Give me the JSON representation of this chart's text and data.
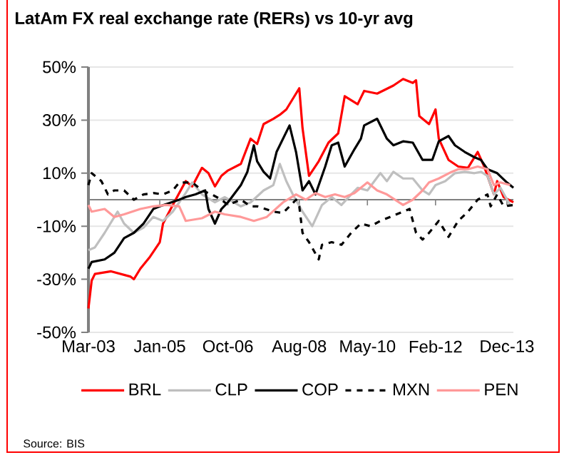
{
  "chart_data": {
    "type": "line",
    "title": "LatAm FX real exchange rate (RERs) vs 10-yr avg",
    "xlim": [
      "2003-03",
      "2014-02"
    ],
    "xticks": [
      {
        "value": "2003-03",
        "label": "Mar-03"
      },
      {
        "value": "2005-01",
        "label": "Jan-05"
      },
      {
        "value": "2006-10",
        "label": "Oct-06"
      },
      {
        "value": "2008-08",
        "label": "Aug-08"
      },
      {
        "value": "2010-05",
        "label": "May-10"
      },
      {
        "value": "2012-02",
        "label": "Feb-12"
      },
      {
        "value": "2013-12",
        "label": "Dec-13"
      }
    ],
    "ylim": [
      -50,
      50
    ],
    "yticks": [
      {
        "value": -50,
        "label": "-50%"
      },
      {
        "value": -30,
        "label": "-30%"
      },
      {
        "value": -10,
        "label": "-10%"
      },
      {
        "value": 10,
        "label": "10%"
      },
      {
        "value": 30,
        "label": "30%"
      },
      {
        "value": 50,
        "label": "50%"
      }
    ],
    "grid": "y",
    "legend": "bottom",
    "ref_lines": [
      {
        "axis": "y",
        "value": 0,
        "color": "#808080"
      }
    ],
    "annotations": [
      "Source: BIS"
    ],
    "series": [
      {
        "name": "BRL",
        "color": "#ff0000",
        "x": [
          "2003-03",
          "2003-04",
          "2003-05",
          "2003-10",
          "2004-04",
          "2004-05",
          "2004-07",
          "2004-10",
          "2005-01",
          "2005-02",
          "2005-05",
          "2005-09",
          "2005-11",
          "2006-02",
          "2006-04",
          "2006-06",
          "2006-08",
          "2006-10",
          "2007-02",
          "2007-05",
          "2007-07",
          "2007-09",
          "2007-12",
          "2008-02",
          "2008-04",
          "2008-08",
          "2008-09",
          "2008-11",
          "2009-02",
          "2009-05",
          "2009-08",
          "2009-10",
          "2010-02",
          "2010-04",
          "2010-08",
          "2011-01",
          "2011-04",
          "2011-07",
          "2011-08",
          "2011-09",
          "2011-12",
          "2012-02",
          "2012-03",
          "2012-06",
          "2012-09",
          "2012-12",
          "2013-03",
          "2013-05",
          "2013-08",
          "2013-09",
          "2013-11",
          "2014-02"
        ],
        "values": [
          -41,
          -30.5,
          -28,
          -27,
          -29,
          -30,
          -26,
          -21.5,
          -16,
          -9,
          -2,
          7,
          5,
          12,
          10,
          5,
          9,
          11,
          13.5,
          23,
          21,
          28.5,
          30.5,
          32,
          34,
          42,
          27,
          9,
          14.5,
          21.5,
          25,
          39,
          36,
          41,
          40,
          43,
          45.5,
          44,
          45,
          31.5,
          28.5,
          34,
          23,
          15,
          12.5,
          12,
          18,
          12.5,
          2,
          7,
          1,
          -1
        ]
      },
      {
        "name": "CLP",
        "color": "#bfbfbf",
        "x": [
          "2003-03",
          "2003-05",
          "2003-08",
          "2003-11",
          "2003-12",
          "2004-02",
          "2004-05",
          "2004-08",
          "2004-11",
          "2005-02",
          "2005-05",
          "2005-09",
          "2005-11",
          "2006-02",
          "2006-06",
          "2006-09",
          "2007-02",
          "2007-05",
          "2007-09",
          "2007-12",
          "2008-02",
          "2008-04",
          "2008-06",
          "2008-09",
          "2008-12",
          "2009-03",
          "2009-06",
          "2009-09",
          "2009-12",
          "2010-02",
          "2010-05",
          "2010-09",
          "2010-11",
          "2011-01",
          "2011-04",
          "2011-07",
          "2011-10",
          "2011-12",
          "2012-02",
          "2012-05",
          "2012-08",
          "2012-11",
          "2013-02",
          "2013-04",
          "2013-06",
          "2013-08",
          "2013-10",
          "2014-01"
        ],
        "values": [
          -19,
          -18,
          -12.5,
          -6.5,
          -4.5,
          -9,
          -12.5,
          -10.5,
          -6.5,
          -8,
          -4.5,
          2.5,
          6.5,
          2,
          -1,
          1,
          -2.5,
          -1,
          3.5,
          5.5,
          13.5,
          7,
          2,
          -4.5,
          -10,
          -2,
          1,
          -2,
          2,
          4.5,
          3.5,
          10,
          7,
          10.5,
          8,
          8,
          3.5,
          2,
          5.5,
          7,
          10,
          10.5,
          10,
          10.5,
          9,
          2,
          4.5,
          -2
        ]
      },
      {
        "name": "COP",
        "color": "#000000",
        "x": [
          "2003-03",
          "2003-04",
          "2003-08",
          "2003-11",
          "2004-02",
          "2004-05",
          "2004-08",
          "2004-11",
          "2005-01",
          "2005-07",
          "2005-09",
          "2005-12",
          "2006-03",
          "2006-04",
          "2006-06",
          "2006-08",
          "2006-10",
          "2007-02",
          "2007-04",
          "2007-06",
          "2007-07",
          "2007-09",
          "2007-11",
          "2008-01",
          "2008-05",
          "2008-07",
          "2008-09",
          "2008-11",
          "2009-01",
          "2009-04",
          "2009-06",
          "2009-08",
          "2009-10",
          "2010-01",
          "2010-03",
          "2010-04",
          "2010-08",
          "2010-11",
          "2011-01",
          "2011-04",
          "2011-07",
          "2011-10",
          "2012-01",
          "2012-03",
          "2012-06",
          "2012-08",
          "2012-11",
          "2013-02",
          "2013-04",
          "2013-06",
          "2013-09",
          "2013-12",
          "2014-02"
        ],
        "values": [
          -26,
          -23.5,
          -22.5,
          -20,
          -14.5,
          -12.5,
          -9,
          -3.5,
          -2.5,
          0,
          1,
          2,
          3.5,
          -3.5,
          -9,
          -3.5,
          -1,
          5.5,
          10.5,
          20.5,
          14.5,
          10.5,
          8,
          18,
          28,
          18,
          3.5,
          7,
          2,
          12.5,
          20.5,
          21.5,
          12.5,
          19,
          23,
          28,
          30.5,
          23,
          20.5,
          22,
          21.5,
          15,
          15,
          22,
          24,
          20.5,
          18,
          16,
          15,
          11.5,
          10,
          6.5,
          4.5
        ]
      },
      {
        "name": "MXN",
        "color": "#000000",
        "line_style": "dashed",
        "x": [
          "2003-03",
          "2003-04",
          "2003-07",
          "2003-09",
          "2003-11",
          "2004-02",
          "2004-05",
          "2004-08",
          "2004-11",
          "2005-02",
          "2005-05",
          "2005-07",
          "2005-11",
          "2006-02",
          "2006-05",
          "2006-08",
          "2006-10",
          "2007-02",
          "2007-05",
          "2007-07",
          "2007-12",
          "2008-03",
          "2008-07",
          "2008-08",
          "2008-09",
          "2008-11",
          "2009-02",
          "2009-03",
          "2009-06",
          "2009-09",
          "2009-12",
          "2010-03",
          "2010-06",
          "2010-09",
          "2010-12",
          "2011-04",
          "2011-06",
          "2011-08",
          "2011-10",
          "2011-12",
          "2012-03",
          "2012-06",
          "2012-09",
          "2012-12",
          "2013-03",
          "2013-06",
          "2013-07",
          "2013-09",
          "2013-11",
          "2014-02"
        ],
        "values": [
          5.5,
          10,
          7,
          2,
          3.5,
          3.5,
          0,
          2,
          2.5,
          2,
          3.5,
          6.5,
          6.5,
          3.5,
          2,
          0,
          -2,
          0,
          -2.5,
          -2.5,
          -4.5,
          -5,
          0,
          -2.5,
          -12.5,
          -16,
          -22.5,
          -17,
          -16,
          -17,
          -12.5,
          -9,
          -10,
          -8,
          -6.5,
          -4.5,
          -3.5,
          -12.5,
          -15,
          -12.5,
          -8,
          -14,
          -8,
          -4.5,
          0,
          2,
          -2.5,
          2,
          -2.5,
          -2
        ]
      },
      {
        "name": "PEN",
        "color": "#ff9999",
        "x": [
          "2003-03",
          "2003-04",
          "2003-08",
          "2003-11",
          "2004-02",
          "2004-07",
          "2004-11",
          "2005-03",
          "2005-07",
          "2005-09",
          "2006-02",
          "2006-06",
          "2006-09",
          "2007-02",
          "2007-06",
          "2007-10",
          "2008-03",
          "2008-07",
          "2008-10",
          "2009-01",
          "2009-04",
          "2009-07",
          "2009-10",
          "2010-01",
          "2010-05",
          "2010-08",
          "2010-11",
          "2011-04",
          "2011-07",
          "2011-10",
          "2011-12",
          "2012-03",
          "2012-07",
          "2012-09",
          "2012-12",
          "2013-03",
          "2013-06",
          "2013-08",
          "2013-10",
          "2014-01"
        ],
        "values": [
          -2,
          -4.5,
          -3.5,
          -6.5,
          -5.5,
          -3.5,
          -2.5,
          -2,
          -2.5,
          -8,
          -7,
          -4.5,
          -5.5,
          -6.5,
          -8,
          -6.5,
          -1,
          2,
          0,
          2.5,
          1,
          2,
          1,
          2.5,
          6.5,
          3.5,
          2,
          -2,
          0,
          3.5,
          6.5,
          8,
          10.5,
          11.5,
          11.5,
          12.5,
          11.5,
          5.5,
          6.5,
          5.5
        ]
      }
    ]
  }
}
